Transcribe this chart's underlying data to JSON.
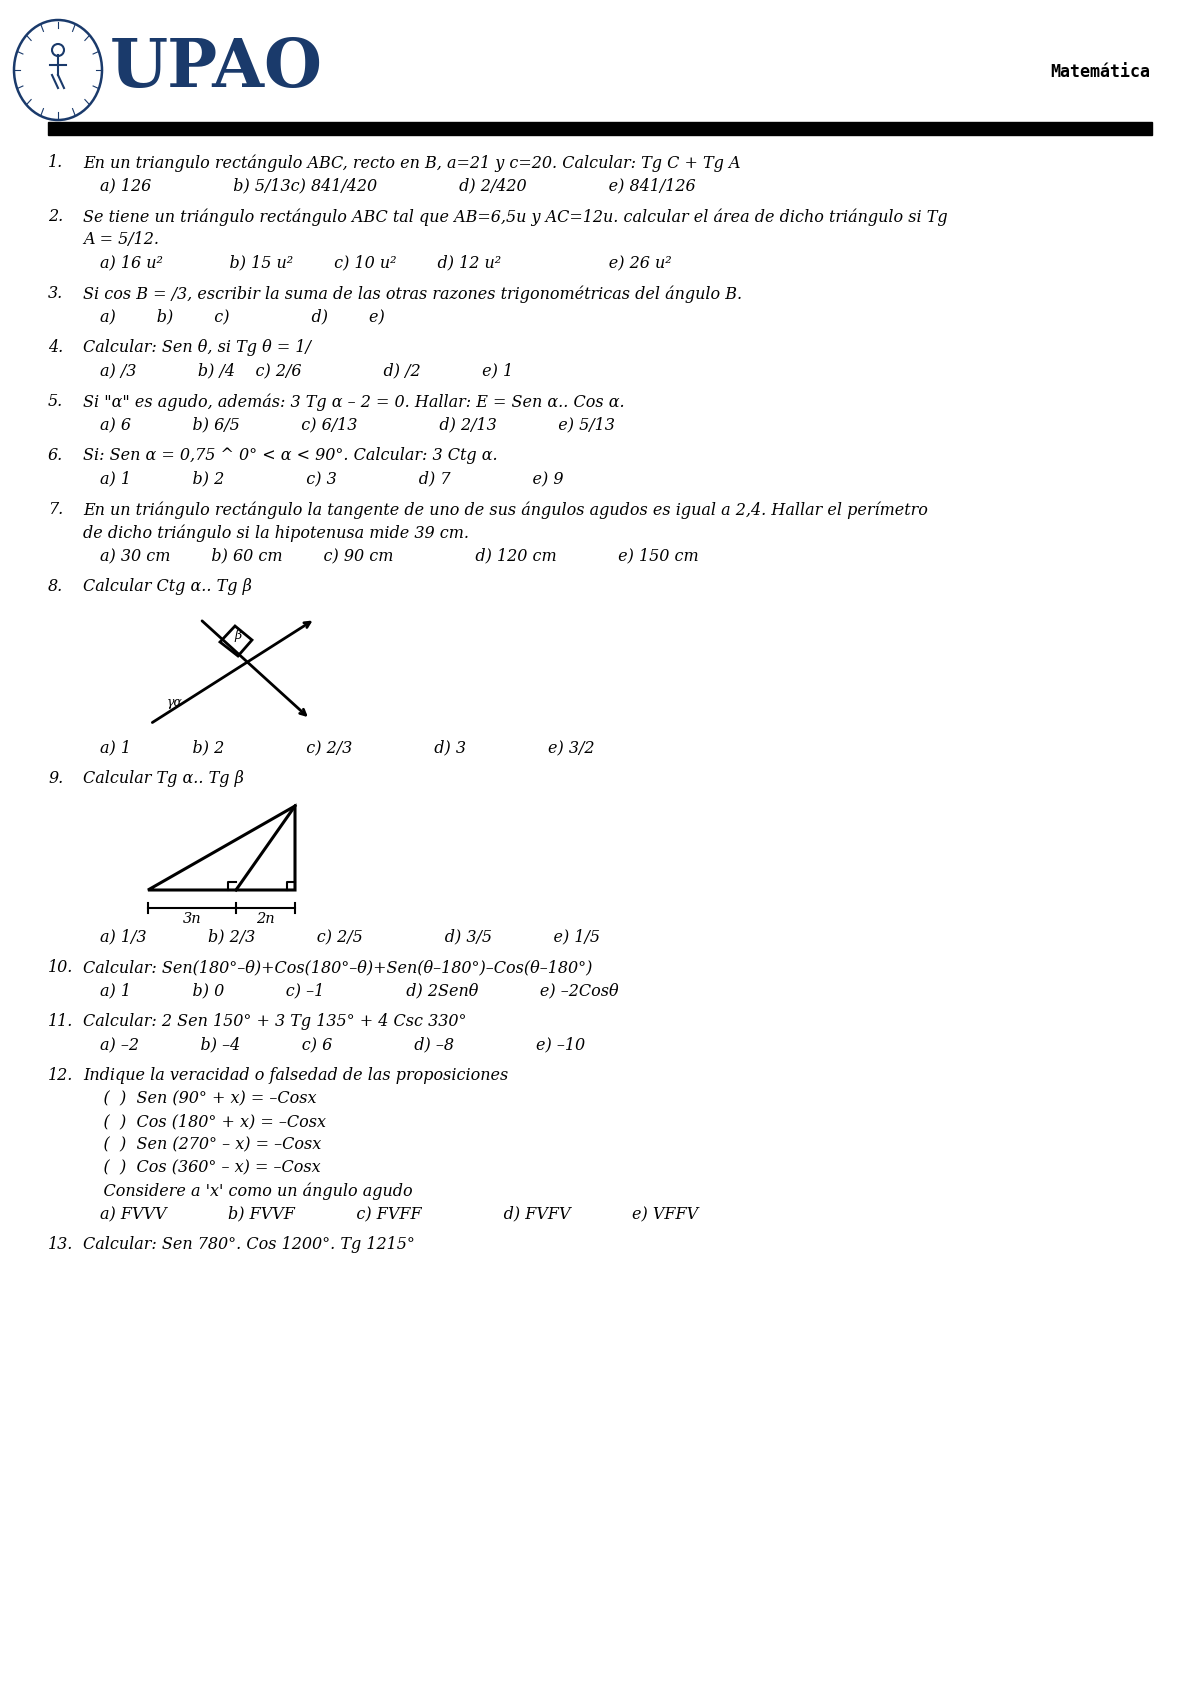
{
  "title": "Matemática",
  "bg_color": "#ffffff",
  "header_color": "#1a3a6b",
  "questions": [
    {
      "num": "1.",
      "text": "En un triangulo rectángulo ABC, recto en B, a=21 y c=20. Calcular: Tg C + Tg A",
      "answers": "a) 126                b) 5/13c) 841/420                d) 2/420                e) 841/126"
    },
    {
      "num": "2.",
      "text": "Se tiene un triángulo rectángulo ABC tal que AB=6,5u y AC=12u. calcular el área de dicho triángulo si Tg\nA = 5/12.",
      "answers": "a) 16 u²             b) 15 u²        c) 10 u²        d) 12 u²                     e) 26 u²"
    },
    {
      "num": "3.",
      "text": "Si cos B = /3, escribir la suma de las otras razones trigonométricas del ángulo B.",
      "answers": "a)        b)        c)                d)        e)"
    },
    {
      "num": "4.",
      "text": "Calcular: Sen θ, si Tg θ = 1/",
      "answers": "a) /3            b) /4    c) 2/6                d) /2            e) 1"
    },
    {
      "num": "5.",
      "text": "Si \"α\" es agudo, además: 3 Tg α – 2 = 0. Hallar: E = Sen α.. Cos α.",
      "answers": "a) 6            b) 6/5            c) 6/13                d) 2/13            e) 5/13"
    },
    {
      "num": "6.",
      "text": "Si: Sen α = 0,75 ^ 0° < α < 90°. Calcular: 3 Ctg α.",
      "answers": "a) 1            b) 2                c) 3                d) 7                e) 9"
    },
    {
      "num": "7.",
      "text": "En un triángulo rectángulo la tangente de uno de sus ángulos agudos es igual a 2,4. Hallar el perímetro\nde dicho triángulo si la hipotenusa mide 39 cm.",
      "answers": "a) 30 cm        b) 60 cm        c) 90 cm                d) 120 cm            e) 150 cm"
    },
    {
      "num": "8.",
      "text": "Calcular Ctg α.. Tg β",
      "answers": "a) 1            b) 2                c) 2/3                d) 3                e) 3/2",
      "has_figure_8": true
    },
    {
      "num": "9.",
      "text": "Calcular Tg α.. Tg β",
      "answers": "a) 1/3            b) 2/3            c) 2/5                d) 3/5            e) 1/5",
      "has_figure_9": true
    },
    {
      "num": "10.",
      "text": "Calcular: Sen(180°–θ)+Cos(180°–θ)+Sen(θ–180°)–Cos(θ–180°)",
      "answers": "a) 1            b) 0            c) –1                d) 2Senθ            e) –2Cosθ"
    },
    {
      "num": "11.",
      "text": "Calcular: 2 Sen 150° + 3 Tg 135° + 4 Csc 330°",
      "answers": "a) –2            b) –4            c) 6                d) –8                e) –10"
    },
    {
      "num": "12.",
      "text": "Indique la veracidad o falsedad de las proposiciones",
      "sublines": [
        "    (  )  Sen (90° + x) = –Cosx",
        "    (  )  Cos (180° + x) = –Cosx",
        "    (  )  Sen (270° – x) = –Cosx",
        "    (  )  Cos (360° – x) = –Cosx",
        "    Considere a 'x' como un ángulo agudo"
      ],
      "answers": "a) FVVV            b) FVVF            c) FVFF                d) FVFV            e) VFFV"
    },
    {
      "num": "13.",
      "text": "Calcular: Sen 780°. Cos 1200°. Tg 1215°",
      "answers": ""
    }
  ]
}
